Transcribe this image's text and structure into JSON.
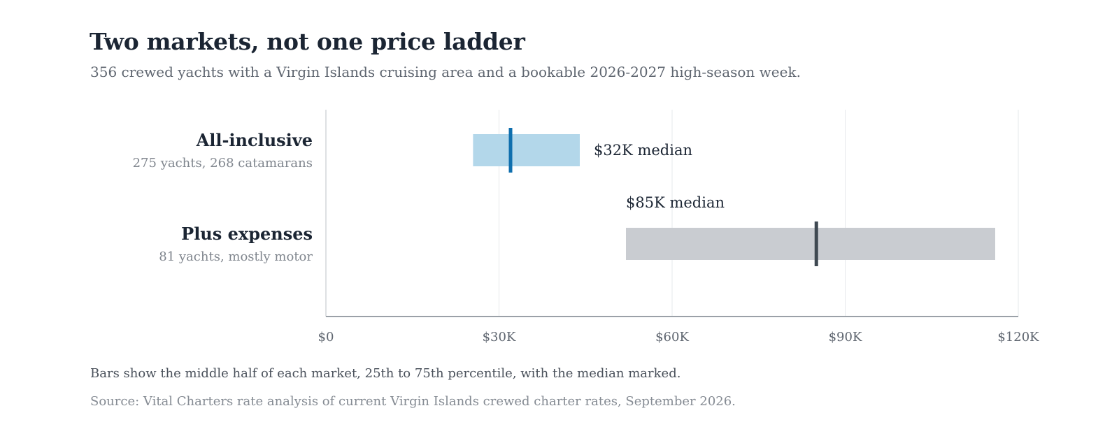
{
  "chart_data": {
    "type": "bar",
    "title": "Two markets, not one price ladder",
    "subtitle": "356 crewed yachts with a Virgin Islands cruising area and a bookable 2026-2027 high-season week.",
    "xlim": [
      0,
      120000
    ],
    "x_ticks": [
      0,
      30000,
      60000,
      90000,
      120000
    ],
    "x_tick_labels": [
      "$0",
      "$30K",
      "$60K",
      "$90K",
      "$120K"
    ],
    "grid": true,
    "series": [
      {
        "name": "All-inclusive",
        "description": "275 yachts, 268 catamarans",
        "p25": 25500,
        "median": 32000,
        "p75": 44000,
        "median_label": "$32K median",
        "bar_color": "#b3d7ea",
        "median_color": "#0f6fae"
      },
      {
        "name": "Plus expenses",
        "description": "81 yachts, mostly motor",
        "p25": 52000,
        "median": 85000,
        "p75": 116000,
        "median_label": "$85K median",
        "bar_color": "#c9ccd1",
        "median_color": "#3f4952"
      }
    ]
  },
  "footnote": "Bars show the middle half of each market, 25th to 75th percentile, with the median marked.",
  "source": "Source: Vital Charters rate analysis of current Virgin Islands crewed charter rates, September 2026.",
  "colors": {
    "title": "#1b2533",
    "grid": "#e6e8eb",
    "axis": "#9ba1a8",
    "tick_text": "#5f6670"
  }
}
